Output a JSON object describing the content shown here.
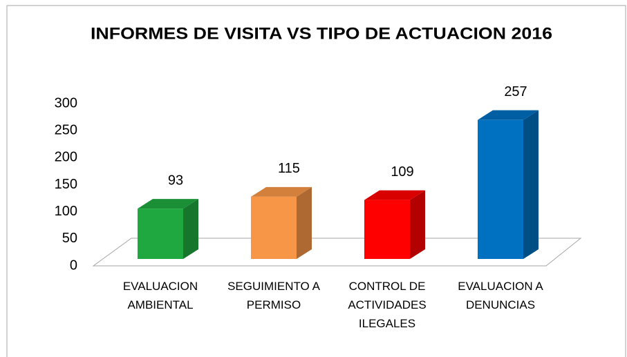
{
  "chart_data": {
    "type": "bar3d",
    "title": "INFORMES DE VISITA VS TIPO DE ACTUACION 2016",
    "categories": [
      "EVALUACION AMBIENTAL",
      "SEGUIMIENTO A PERMISO",
      "CONTROL DE ACTIVIDADES ILEGALES",
      "EVALUACION A DENUNCIAS"
    ],
    "values": [
      93,
      115,
      109,
      257
    ],
    "colors": [
      "#1ea83f",
      "#f79646",
      "#ff0000",
      "#0070c0"
    ],
    "ylim": [
      0,
      300
    ],
    "yticks": [
      0,
      50,
      100,
      150,
      200,
      250,
      300
    ]
  }
}
